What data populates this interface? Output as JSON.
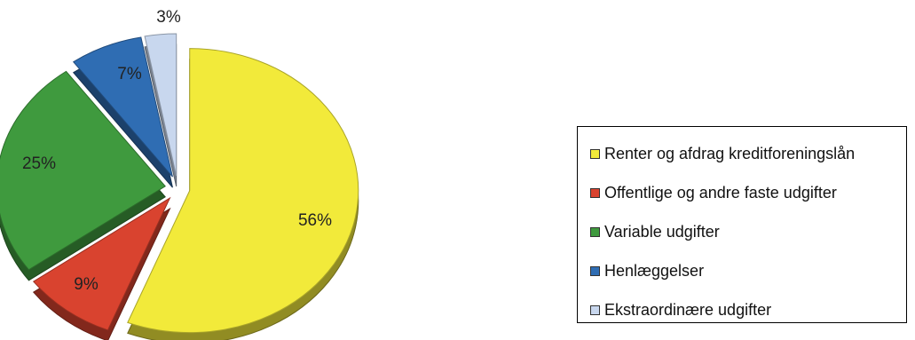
{
  "chart_data": {
    "type": "pie",
    "categories": [
      "Renter og afdrag kreditforeningslån",
      "Offentlige og andre faste udgifter",
      "Variable udgifter",
      "Henlæggelser",
      "Ekstraordinære udgifter"
    ],
    "values": [
      56,
      9,
      25,
      7,
      3
    ],
    "data_labels": [
      "56%",
      "9%",
      "25%",
      "7%",
      "3%"
    ],
    "colors": [
      "#f2ea3a",
      "#d9432f",
      "#3f9a3e",
      "#2f6db3",
      "#c8d7ee"
    ],
    "exploded": true,
    "three_d": true,
    "legend_position": "right"
  }
}
